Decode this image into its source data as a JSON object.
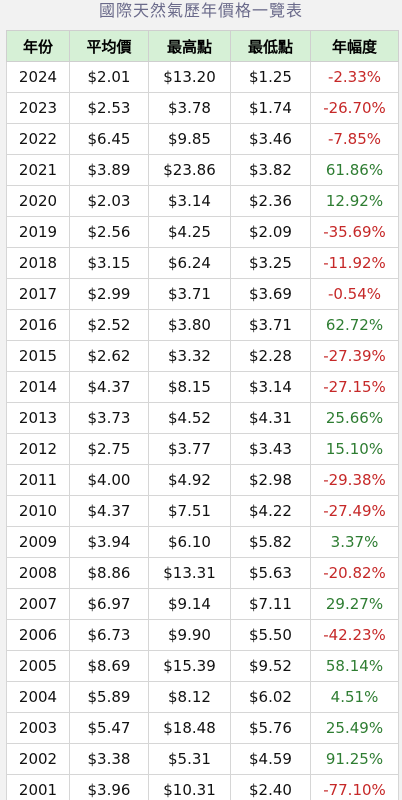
{
  "title": "國際天然氣歷年價格一覽表",
  "headers": [
    "年份",
    "平均價",
    "最高點",
    "最低點",
    "年幅度"
  ],
  "colors": {
    "header_bg": "#d6f0d6",
    "negative": "#c62828",
    "positive": "#2e7d32"
  },
  "rows": [
    {
      "year": "2024",
      "avg": "$2.01",
      "high": "$13.20",
      "low": "$1.25",
      "change": "-2.33%"
    },
    {
      "year": "2023",
      "avg": "$2.53",
      "high": "$3.78",
      "low": "$1.74",
      "change": "-26.70%"
    },
    {
      "year": "2022",
      "avg": "$6.45",
      "high": "$9.85",
      "low": "$3.46",
      "change": "-7.85%"
    },
    {
      "year": "2021",
      "avg": "$3.89",
      "high": "$23.86",
      "low": "$3.82",
      "change": "61.86%"
    },
    {
      "year": "2020",
      "avg": "$2.03",
      "high": "$3.14",
      "low": "$2.36",
      "change": "12.92%"
    },
    {
      "year": "2019",
      "avg": "$2.56",
      "high": "$4.25",
      "low": "$2.09",
      "change": "-35.69%"
    },
    {
      "year": "2018",
      "avg": "$3.15",
      "high": "$6.24",
      "low": "$3.25",
      "change": "-11.92%"
    },
    {
      "year": "2017",
      "avg": "$2.99",
      "high": "$3.71",
      "low": "$3.69",
      "change": "-0.54%"
    },
    {
      "year": "2016",
      "avg": "$2.52",
      "high": "$3.80",
      "low": "$3.71",
      "change": "62.72%"
    },
    {
      "year": "2015",
      "avg": "$2.62",
      "high": "$3.32",
      "low": "$2.28",
      "change": "-27.39%"
    },
    {
      "year": "2014",
      "avg": "$4.37",
      "high": "$8.15",
      "low": "$3.14",
      "change": "-27.15%"
    },
    {
      "year": "2013",
      "avg": "$3.73",
      "high": "$4.52",
      "low": "$4.31",
      "change": "25.66%"
    },
    {
      "year": "2012",
      "avg": "$2.75",
      "high": "$3.77",
      "low": "$3.43",
      "change": "15.10%"
    },
    {
      "year": "2011",
      "avg": "$4.00",
      "high": "$4.92",
      "low": "$2.98",
      "change": "-29.38%"
    },
    {
      "year": "2010",
      "avg": "$4.37",
      "high": "$7.51",
      "low": "$4.22",
      "change": "-27.49%"
    },
    {
      "year": "2009",
      "avg": "$3.94",
      "high": "$6.10",
      "low": "$5.82",
      "change": "3.37%"
    },
    {
      "year": "2008",
      "avg": "$8.86",
      "high": "$13.31",
      "low": "$5.63",
      "change": "-20.82%"
    },
    {
      "year": "2007",
      "avg": "$6.97",
      "high": "$9.14",
      "low": "$7.11",
      "change": "29.27%"
    },
    {
      "year": "2006",
      "avg": "$6.73",
      "high": "$9.90",
      "low": "$5.50",
      "change": "-42.23%"
    },
    {
      "year": "2005",
      "avg": "$8.69",
      "high": "$15.39",
      "low": "$9.52",
      "change": "58.14%"
    },
    {
      "year": "2004",
      "avg": "$5.89",
      "high": "$8.12",
      "low": "$6.02",
      "change": "4.51%"
    },
    {
      "year": "2003",
      "avg": "$5.47",
      "high": "$18.48",
      "low": "$5.76",
      "change": "25.49%"
    },
    {
      "year": "2002",
      "avg": "$3.38",
      "high": "$5.31",
      "low": "$4.59",
      "change": "91.25%"
    },
    {
      "year": "2001",
      "avg": "$3.96",
      "high": "$10.31",
      "low": "$2.40",
      "change": "-77.10%"
    }
  ]
}
